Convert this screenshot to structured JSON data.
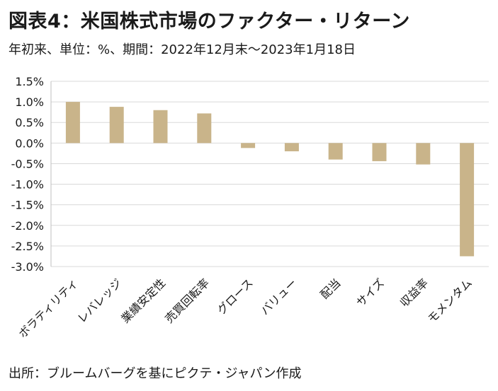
{
  "title": "図表4：米国株式市場のファクター・リターン",
  "subtitle": "年初来、単位：%、期間：2022年12月末～2023年1月18日",
  "source": "出所：ブルームバーグを基にピクテ・ジャパン作成",
  "colors": {
    "bar": "#c9b48a",
    "grid": "#d9d9d9",
    "axis": "#bfbfbf",
    "text": "#1a1a1a"
  },
  "chart_data": {
    "type": "bar",
    "title": "図表4：米国株式市場のファクター・リターン",
    "xlabel": "",
    "ylabel": "",
    "unit": "%",
    "ylim": [
      -3.0,
      1.5
    ],
    "ytick_step": 0.5,
    "ytick_labels": [
      "1.5%",
      "1.0%",
      "0.5%",
      "0.0%",
      "-0.5%",
      "-1.0%",
      "-1.5%",
      "-2.0%",
      "-2.5%",
      "-3.0%"
    ],
    "grid": true,
    "legend": "none",
    "categories": [
      "ボラティリティ",
      "レバレッジ",
      "業績安定性",
      "売買回転率",
      "グロース",
      "バリュー",
      "配当",
      "サイズ",
      "収益率",
      "モメンタム"
    ],
    "values": [
      1.0,
      0.88,
      0.8,
      0.72,
      -0.12,
      -0.2,
      -0.4,
      -0.44,
      -0.52,
      -2.75
    ]
  }
}
